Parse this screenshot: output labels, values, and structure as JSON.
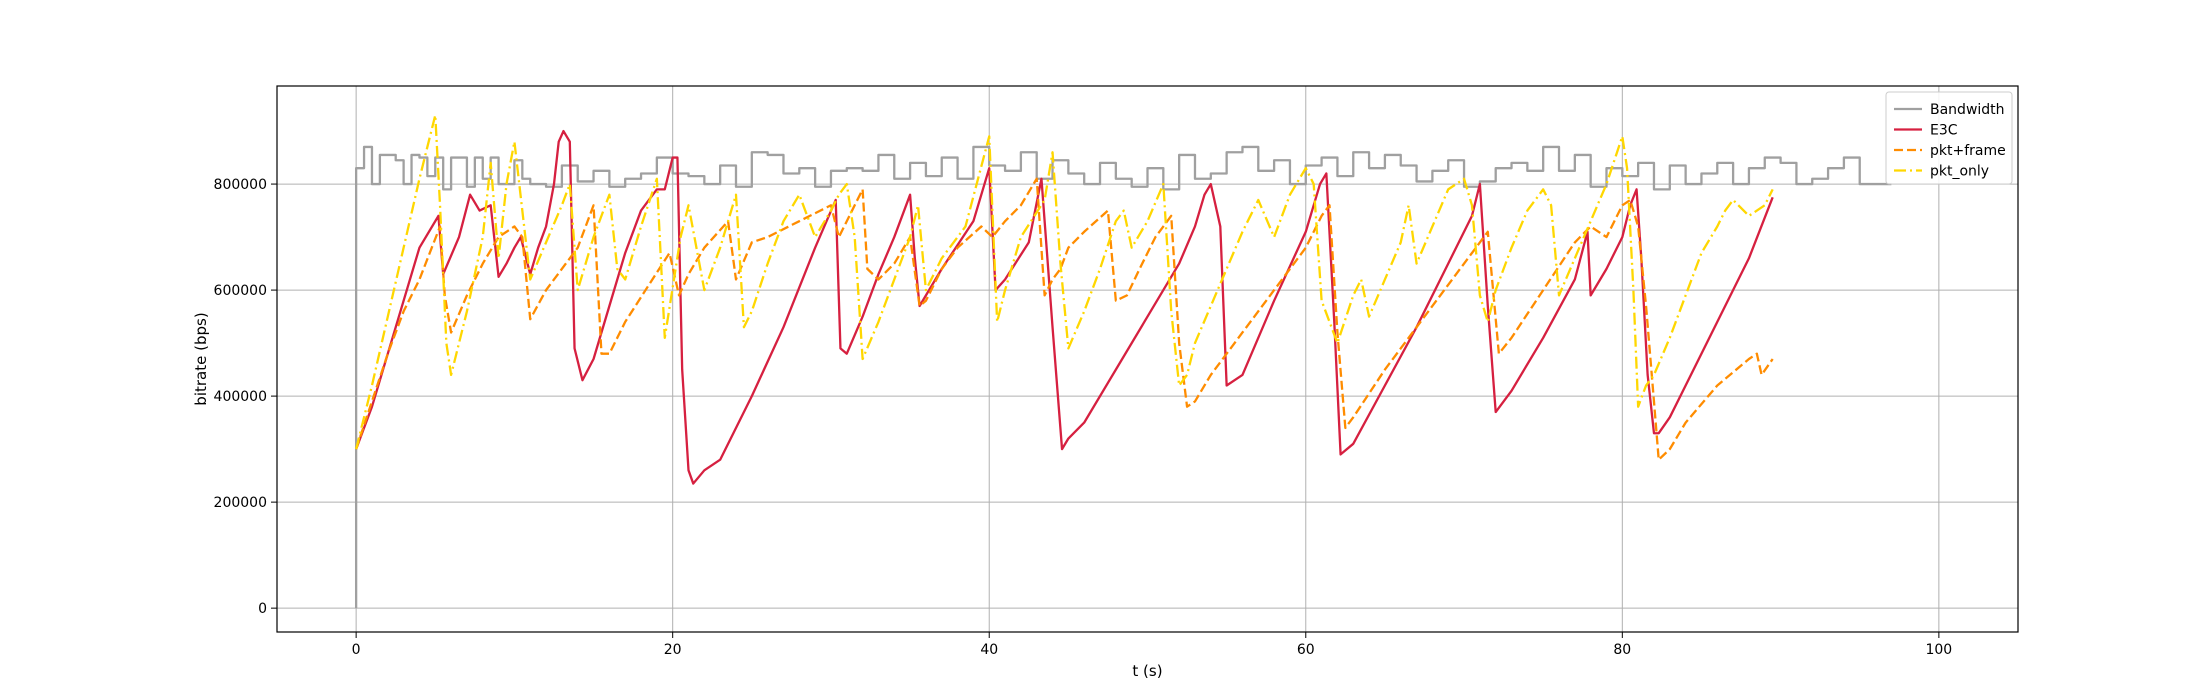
{
  "chart_data": {
    "type": "line",
    "title": "",
    "xlabel": "t (s)",
    "ylabel": "bitrate (bps)",
    "xlim": [
      -5,
      105
    ],
    "ylim": [
      -45000,
      985000
    ],
    "x_ticks": [
      0,
      20,
      40,
      60,
      80,
      100
    ],
    "y_ticks": [
      0,
      200000,
      400000,
      600000,
      800000
    ],
    "grid": true,
    "legend_position": "top-right",
    "series": [
      {
        "name": "Bandwidth",
        "color": "#a0a0a0",
        "style": "step",
        "dash": "solid",
        "x": [
          0,
          0,
          0.5,
          1.0,
          1.5,
          2.5,
          3.0,
          3.5,
          4.0,
          4.5,
          5.0,
          5.5,
          6.0,
          7.0,
          7.5,
          8.0,
          8.5,
          9.0,
          10.0,
          10.5,
          11.0,
          12.0,
          13.0,
          14.0,
          15.0,
          16.0,
          17.0,
          18.0,
          19.0,
          20.0,
          21.0,
          22.0,
          23.0,
          24.0,
          25.0,
          26.0,
          27.0,
          28.0,
          29.0,
          30.0,
          31.0,
          32.0,
          33.0,
          34.0,
          35.0,
          36.0,
          37.0,
          38.0,
          39.0,
          40.0,
          41.0,
          42.0,
          43.0,
          44.0,
          45.0,
          46.0,
          47.0,
          48.0,
          49.0,
          50.0,
          51.0,
          52.0,
          53.0,
          54.0,
          55.0,
          56.0,
          57.0,
          58.0,
          59.0,
          60.0,
          61.0,
          62.0,
          63.0,
          64.0,
          65.0,
          66.0,
          67.0,
          68.0,
          69.0,
          70.0,
          71.0,
          72.0,
          73.0,
          74.0,
          75.0,
          76.0,
          77.0,
          78.0,
          79.0,
          80.0,
          81.0,
          82.0,
          83.0,
          84.0,
          85.0,
          86.0,
          87.0,
          88.0,
          89.0,
          90.0,
          91.0,
          92.0,
          93.0,
          94.0,
          95.0,
          96.0
        ],
        "y": [
          0,
          830000,
          870000,
          800000,
          855000,
          845000,
          800000,
          855000,
          850000,
          815000,
          850000,
          790000,
          850000,
          795000,
          850000,
          810000,
          850000,
          800000,
          845000,
          810000,
          800000,
          795000,
          835000,
          805000,
          825000,
          795000,
          810000,
          820000,
          850000,
          820000,
          815000,
          800000,
          835000,
          795000,
          860000,
          855000,
          820000,
          830000,
          795000,
          825000,
          830000,
          825000,
          855000,
          810000,
          840000,
          815000,
          850000,
          810000,
          870000,
          835000,
          825000,
          860000,
          810000,
          845000,
          820000,
          800000,
          840000,
          810000,
          795000,
          830000,
          790000,
          855000,
          810000,
          820000,
          860000,
          870000,
          825000,
          845000,
          800000,
          835000,
          850000,
          815000,
          860000,
          830000,
          855000,
          835000,
          805000,
          825000,
          845000,
          795000,
          805000,
          830000,
          840000,
          825000,
          870000,
          825000,
          855000,
          795000,
          830000,
          815000,
          840000,
          790000,
          835000,
          800000,
          820000,
          840000,
          800000,
          830000,
          850000,
          840000,
          800000,
          810000,
          830000,
          850000,
          800000,
          800000
        ]
      },
      {
        "name": "E3C",
        "color": "#d62040",
        "style": "line",
        "dash": "solid",
        "x": [
          0,
          1.0,
          2.0,
          3.0,
          4.0,
          5.2,
          5.5,
          6.5,
          7.2,
          7.8,
          8.5,
          9.0,
          9.5,
          10.0,
          10.4,
          11.0,
          11.5,
          12.0,
          12.5,
          12.8,
          13.1,
          13.5,
          13.8,
          14.3,
          15.0,
          16.0,
          17.0,
          18.0,
          19.0,
          19.5,
          20.0,
          20.3,
          20.6,
          21.0,
          21.3,
          22.0,
          23.0,
          25.0,
          27.0,
          29.0,
          30.3,
          30.6,
          31.0,
          32.0,
          33.0,
          34.0,
          35.0,
          35.3,
          35.6,
          37.0,
          39.0,
          40.0,
          40.4,
          41.0,
          42.5,
          43.3,
          44.0,
          44.6,
          45.0,
          46.0,
          48.0,
          50.0,
          52.0,
          53.0,
          53.6,
          54.0,
          54.6,
          55.0,
          56.0,
          58.0,
          60.0,
          60.9,
          61.3,
          61.8,
          62.2,
          63.0,
          65.0,
          67.0,
          69.0,
          70.5,
          71.0,
          71.5,
          72.0,
          72.5,
          73.0,
          75.0,
          77.0,
          77.8,
          78.0,
          79.0,
          80.0,
          80.5,
          80.9,
          81.2,
          81.6,
          82.0,
          82.3,
          83.0,
          84.0,
          86.0,
          88.0,
          89.5
        ],
        "y": [
          300000,
          380000,
          480000,
          580000,
          680000,
          740000,
          630000,
          700000,
          780000,
          750000,
          760000,
          625000,
          650000,
          680000,
          700000,
          630000,
          680000,
          720000,
          800000,
          880000,
          900000,
          880000,
          490000,
          430000,
          470000,
          570000,
          670000,
          750000,
          790000,
          790000,
          850000,
          850000,
          450000,
          260000,
          235000,
          260000,
          280000,
          400000,
          530000,
          680000,
          770000,
          490000,
          480000,
          550000,
          630000,
          700000,
          780000,
          660000,
          570000,
          640000,
          730000,
          830000,
          600000,
          620000,
          690000,
          810000,
          530000,
          300000,
          320000,
          350000,
          450000,
          550000,
          650000,
          720000,
          780000,
          800000,
          720000,
          420000,
          440000,
          580000,
          710000,
          800000,
          820000,
          540000,
          290000,
          310000,
          420000,
          530000,
          650000,
          740000,
          800000,
          570000,
          370000,
          390000,
          410000,
          510000,
          620000,
          710000,
          590000,
          640000,
          700000,
          760000,
          790000,
          660000,
          440000,
          330000,
          330000,
          360000,
          420000,
          540000,
          660000,
          775000
        ]
      },
      {
        "name": "pkt+frame",
        "color": "#ff8c00",
        "style": "line",
        "dash": "dashed",
        "x": [
          0,
          1.0,
          2.0,
          3.0,
          4.0,
          5.3,
          5.6,
          6.0,
          7.0,
          8.0,
          9.0,
          10.0,
          10.5,
          11.0,
          12.0,
          14.0,
          15.0,
          15.5,
          16.0,
          17.0,
          18.5,
          19.8,
          20.4,
          21.0,
          22.0,
          23.5,
          24.0,
          25.0,
          26.0,
          28.0,
          30.0,
          30.5,
          31.5,
          32.0,
          32.3,
          33.0,
          34.0,
          35.0,
          35.6,
          36.0,
          37.0,
          38.0,
          39.5,
          40.2,
          41.0,
          42.0,
          43.0,
          43.5,
          44.0,
          44.5,
          45.0,
          46.0,
          47.5,
          48.0,
          48.7,
          49.5,
          50.5,
          51.5,
          52.0,
          52.5,
          53.0,
          54.0,
          56.0,
          58.0,
          60.0,
          61.0,
          61.5,
          62.0,
          62.5,
          63.0,
          65.0,
          67.0,
          69.0,
          71.0,
          71.5,
          72.2,
          73.0,
          75.0,
          77.0,
          78.0,
          79.0,
          80.0,
          80.5,
          81.0,
          81.5,
          82.0,
          82.3,
          83.0,
          84.0,
          86.0,
          88.0,
          88.5,
          88.8,
          89.5
        ],
        "y": [
          300000,
          390000,
          480000,
          560000,
          620000,
          720000,
          590000,
          520000,
          590000,
          650000,
          700000,
          720000,
          700000,
          545000,
          600000,
          680000,
          760000,
          480000,
          480000,
          540000,
          610000,
          670000,
          590000,
          630000,
          680000,
          730000,
          620000,
          690000,
          700000,
          730000,
          760000,
          700000,
          760000,
          790000,
          640000,
          620000,
          650000,
          700000,
          570000,
          580000,
          640000,
          680000,
          720000,
          700000,
          730000,
          760000,
          810000,
          590000,
          620000,
          640000,
          680000,
          710000,
          750000,
          580000,
          590000,
          640000,
          700000,
          740000,
          500000,
          380000,
          390000,
          440000,
          520000,
          600000,
          680000,
          740000,
          760000,
          520000,
          340000,
          360000,
          450000,
          530000,
          610000,
          690000,
          710000,
          480000,
          510000,
          600000,
          690000,
          720000,
          700000,
          760000,
          770000,
          720000,
          570000,
          390000,
          280000,
          300000,
          350000,
          420000,
          470000,
          480000,
          440000,
          470000
        ]
      },
      {
        "name": "pkt_only",
        "color": "#ffd700",
        "style": "line",
        "dash": "dashdot",
        "x": [
          0,
          1.0,
          2.0,
          3.0,
          4.0,
          5.0,
          5.3,
          5.7,
          6.0,
          7.0,
          8.0,
          8.5,
          9.0,
          9.5,
          10.0,
          11.0,
          12.0,
          13.0,
          13.5,
          14.0,
          15.0,
          16.0,
          16.5,
          17.0,
          18.0,
          19.0,
          19.5,
          20.5,
          21.0,
          22.0,
          23.0,
          24.0,
          24.5,
          25.0,
          26.0,
          27.0,
          28.0,
          29.0,
          30.0,
          30.5,
          31.0,
          31.5,
          32.0,
          33.0,
          34.0,
          35.0,
          35.5,
          36.0,
          37.0,
          38.5,
          40.0,
          40.5,
          41.0,
          42.0,
          43.5,
          44.0,
          44.5,
          45.0,
          46.0,
          47.0,
          48.0,
          48.5,
          49.0,
          50.0,
          51.0,
          51.5,
          52.0,
          52.5,
          53.0,
          54.0,
          55.0,
          56.0,
          57.0,
          58.0,
          59.0,
          60.0,
          60.5,
          61.0,
          62.0,
          63.0,
          63.5,
          64.0,
          65.0,
          66.0,
          66.5,
          67.0,
          68.0,
          69.0,
          70.0,
          70.5,
          71.0,
          71.5,
          72.0,
          73.0,
          74.0,
          75.0,
          75.5,
          76.0,
          77.0,
          78.0,
          79.0,
          80.0,
          80.3,
          80.7,
          81.0,
          81.5,
          82.0,
          83.0,
          84.0,
          85.0,
          86.0,
          86.5,
          87.0,
          88.0,
          89.0,
          89.5
        ],
        "y": [
          300000,
          420000,
          550000,
          680000,
          810000,
          930000,
          760000,
          500000,
          440000,
          560000,
          700000,
          840000,
          660000,
          800000,
          880000,
          620000,
          690000,
          760000,
          800000,
          600000,
          700000,
          780000,
          640000,
          620000,
          720000,
          810000,
          510000,
          700000,
          760000,
          600000,
          680000,
          780000,
          530000,
          560000,
          650000,
          730000,
          780000,
          700000,
          750000,
          780000,
          800000,
          700000,
          470000,
          540000,
          620000,
          700000,
          760000,
          600000,
          660000,
          720000,
          890000,
          540000,
          600000,
          700000,
          770000,
          860000,
          650000,
          490000,
          560000,
          640000,
          730000,
          750000,
          680000,
          730000,
          800000,
          560000,
          420000,
          440000,
          500000,
          570000,
          640000,
          710000,
          770000,
          700000,
          780000,
          830000,
          800000,
          580000,
          500000,
          590000,
          620000,
          550000,
          620000,
          690000,
          760000,
          650000,
          720000,
          790000,
          810000,
          760000,
          590000,
          540000,
          600000,
          680000,
          750000,
          790000,
          760000,
          590000,
          660000,
          730000,
          800000,
          890000,
          830000,
          600000,
          380000,
          420000,
          440000,
          510000,
          590000,
          670000,
          720000,
          750000,
          770000,
          740000,
          760000,
          790000
        ]
      }
    ]
  }
}
